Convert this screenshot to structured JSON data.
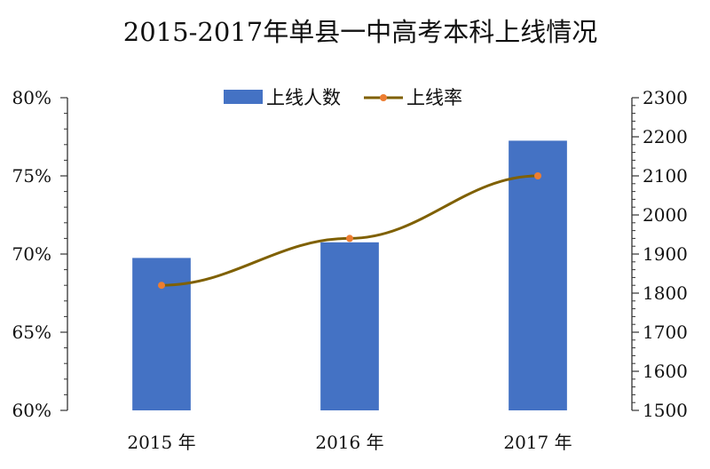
{
  "chart_data": {
    "type": "bar",
    "title": "2015-2017年单县一中高考本科上线情况",
    "categories": [
      "2015 年",
      "2016 年",
      "2017 年"
    ],
    "series": [
      {
        "name": "上线人数",
        "type": "bar",
        "axis": "right",
        "color": "#4472C4",
        "values": [
          1890,
          1930,
          2190
        ]
      },
      {
        "name": "上线率",
        "type": "line",
        "axis": "left",
        "color": "#7F6000",
        "marker_color": "#ED7D31",
        "values": [
          68.0,
          71.0,
          75.0
        ]
      }
    ],
    "y_left": {
      "min": 60,
      "max": 80,
      "step": 5,
      "format": "percent",
      "ticks": [
        "60%",
        "65%",
        "70%",
        "75%",
        "80%"
      ]
    },
    "y_right": {
      "min": 1500,
      "max": 2300,
      "step": 100,
      "ticks": [
        "1500",
        "1600",
        "1700",
        "1800",
        "1900",
        "2000",
        "2100",
        "2200",
        "2300"
      ]
    },
    "legend": "top-center",
    "grid": false
  }
}
